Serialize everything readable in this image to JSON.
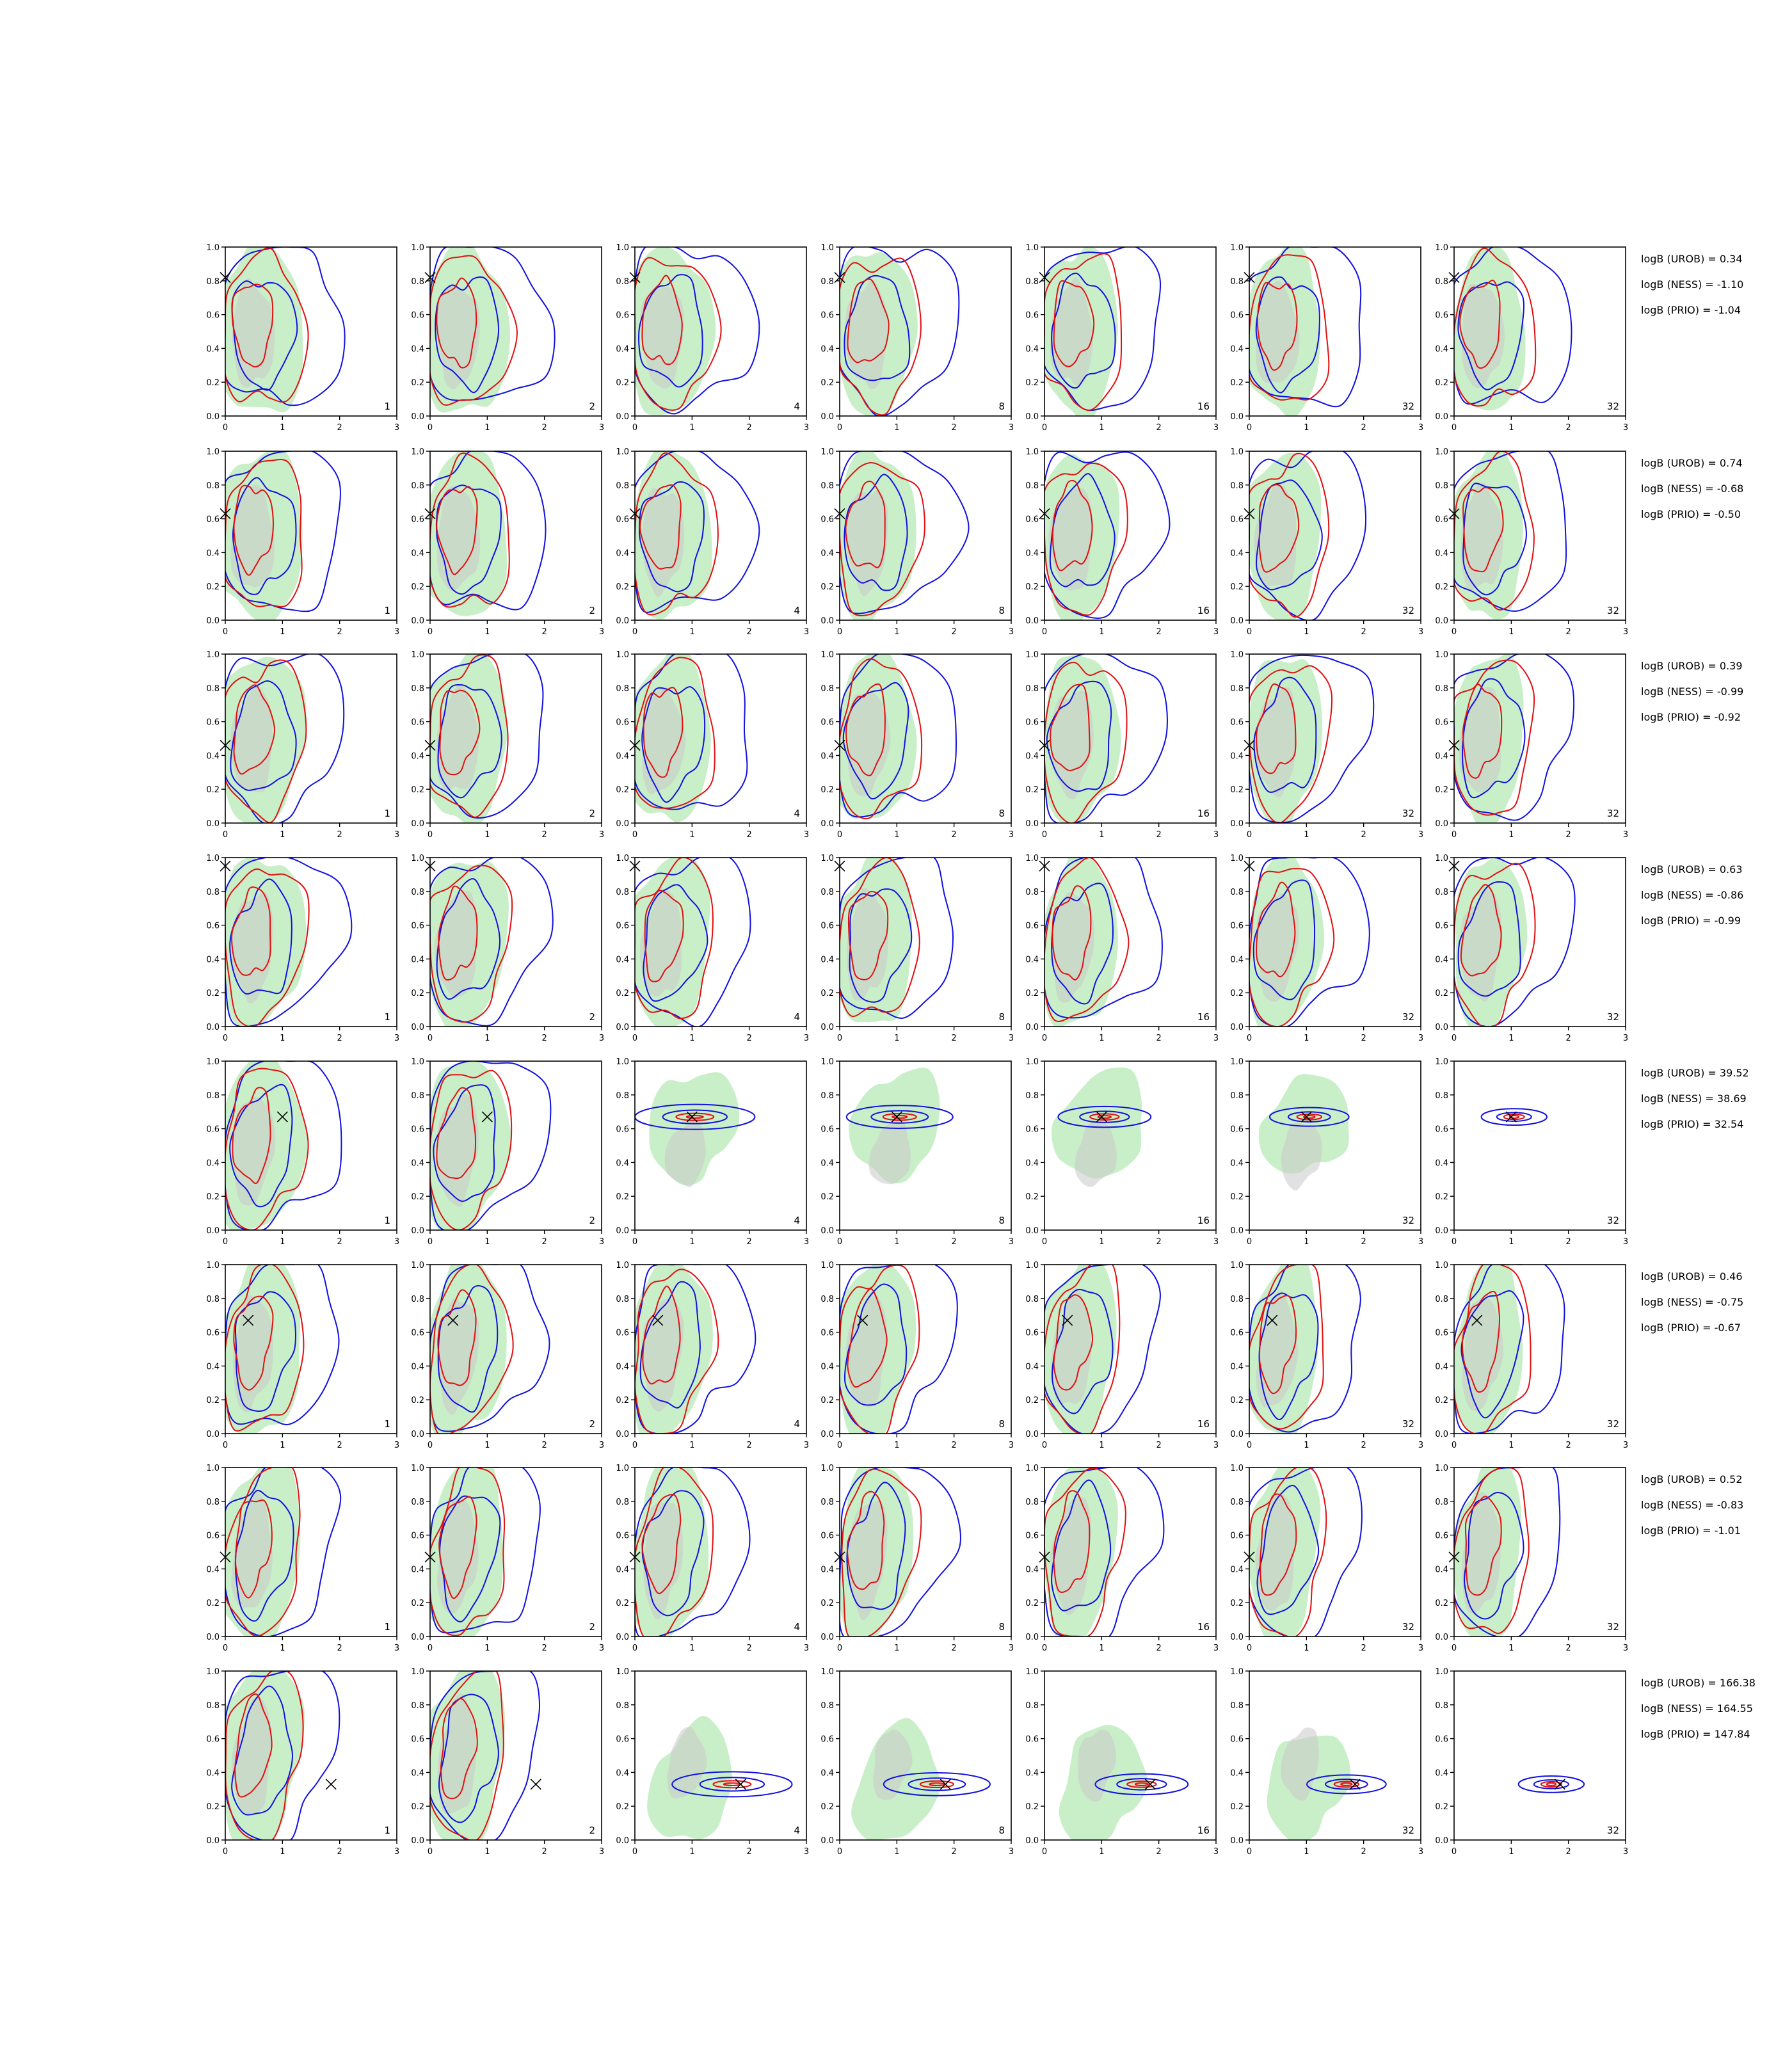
{
  "colors": {
    "green_fill": "#c9efc9",
    "gray_fill": "#c8c8c8",
    "blue_contour": "#1010e0",
    "red_contour": "#e01010",
    "marker": "#000000",
    "axes": "#000000"
  },
  "chart_data": {
    "type": "contour-grid",
    "layout": {
      "rows": 8,
      "cols": 7
    },
    "xlim": [
      0,
      3
    ],
    "ylim": [
      0.0,
      1.0
    ],
    "xticks": [
      "0",
      "1",
      "2",
      "3"
    ],
    "yticks": [
      "0.0",
      "0.2",
      "0.4",
      "0.6",
      "0.8",
      "1.0"
    ],
    "panel_labels": [
      "1",
      "2",
      "4",
      "8",
      "16",
      "32",
      "32"
    ],
    "rows": [
      {
        "truth": [
          0.0,
          0.82
        ],
        "collapse": false,
        "logB": [
          "logB (UROB) = 0.34",
          "logB (NESS) = -1.10",
          "logB (PRIO) = -1.04"
        ]
      },
      {
        "truth": [
          0.0,
          0.63
        ],
        "collapse": false,
        "logB": [
          "logB (UROB) = 0.74",
          "logB (NESS) = -0.68",
          "logB (PRIO) = -0.50"
        ]
      },
      {
        "truth": [
          0.0,
          0.46
        ],
        "collapse": false,
        "logB": [
          "logB (UROB) = 0.39",
          "logB (NESS) = -0.99",
          "logB (PRIO) = -0.92"
        ]
      },
      {
        "truth": [
          0.0,
          0.95
        ],
        "collapse": false,
        "logB": [
          "logB (UROB) = 0.63",
          "logB (NESS) = -0.86",
          "logB (PRIO) = -0.99"
        ]
      },
      {
        "truth": [
          1.0,
          0.67
        ],
        "collapse": true,
        "collapse_y": 0.67,
        "logB": [
          "logB (UROB) = 39.52",
          "logB (NESS) = 38.69",
          "logB (PRIO) = 32.54"
        ]
      },
      {
        "truth": [
          0.4,
          0.67
        ],
        "collapse": false,
        "logB": [
          "logB (UROB) = 0.46",
          "logB (NESS) = -0.75",
          "logB (PRIO) = -0.67"
        ]
      },
      {
        "truth": [
          0.0,
          0.47
        ],
        "collapse": false,
        "logB": [
          "logB (UROB) = 0.52",
          "logB (NESS) = -0.83",
          "logB (PRIO) = -1.01"
        ]
      },
      {
        "truth": [
          1.85,
          0.33
        ],
        "collapse": true,
        "collapse_y": 0.33,
        "logB": [
          "logB (UROB) = 166.38",
          "logB (NESS) = 164.55",
          "logB (PRIO) = 147.84"
        ]
      }
    ]
  }
}
